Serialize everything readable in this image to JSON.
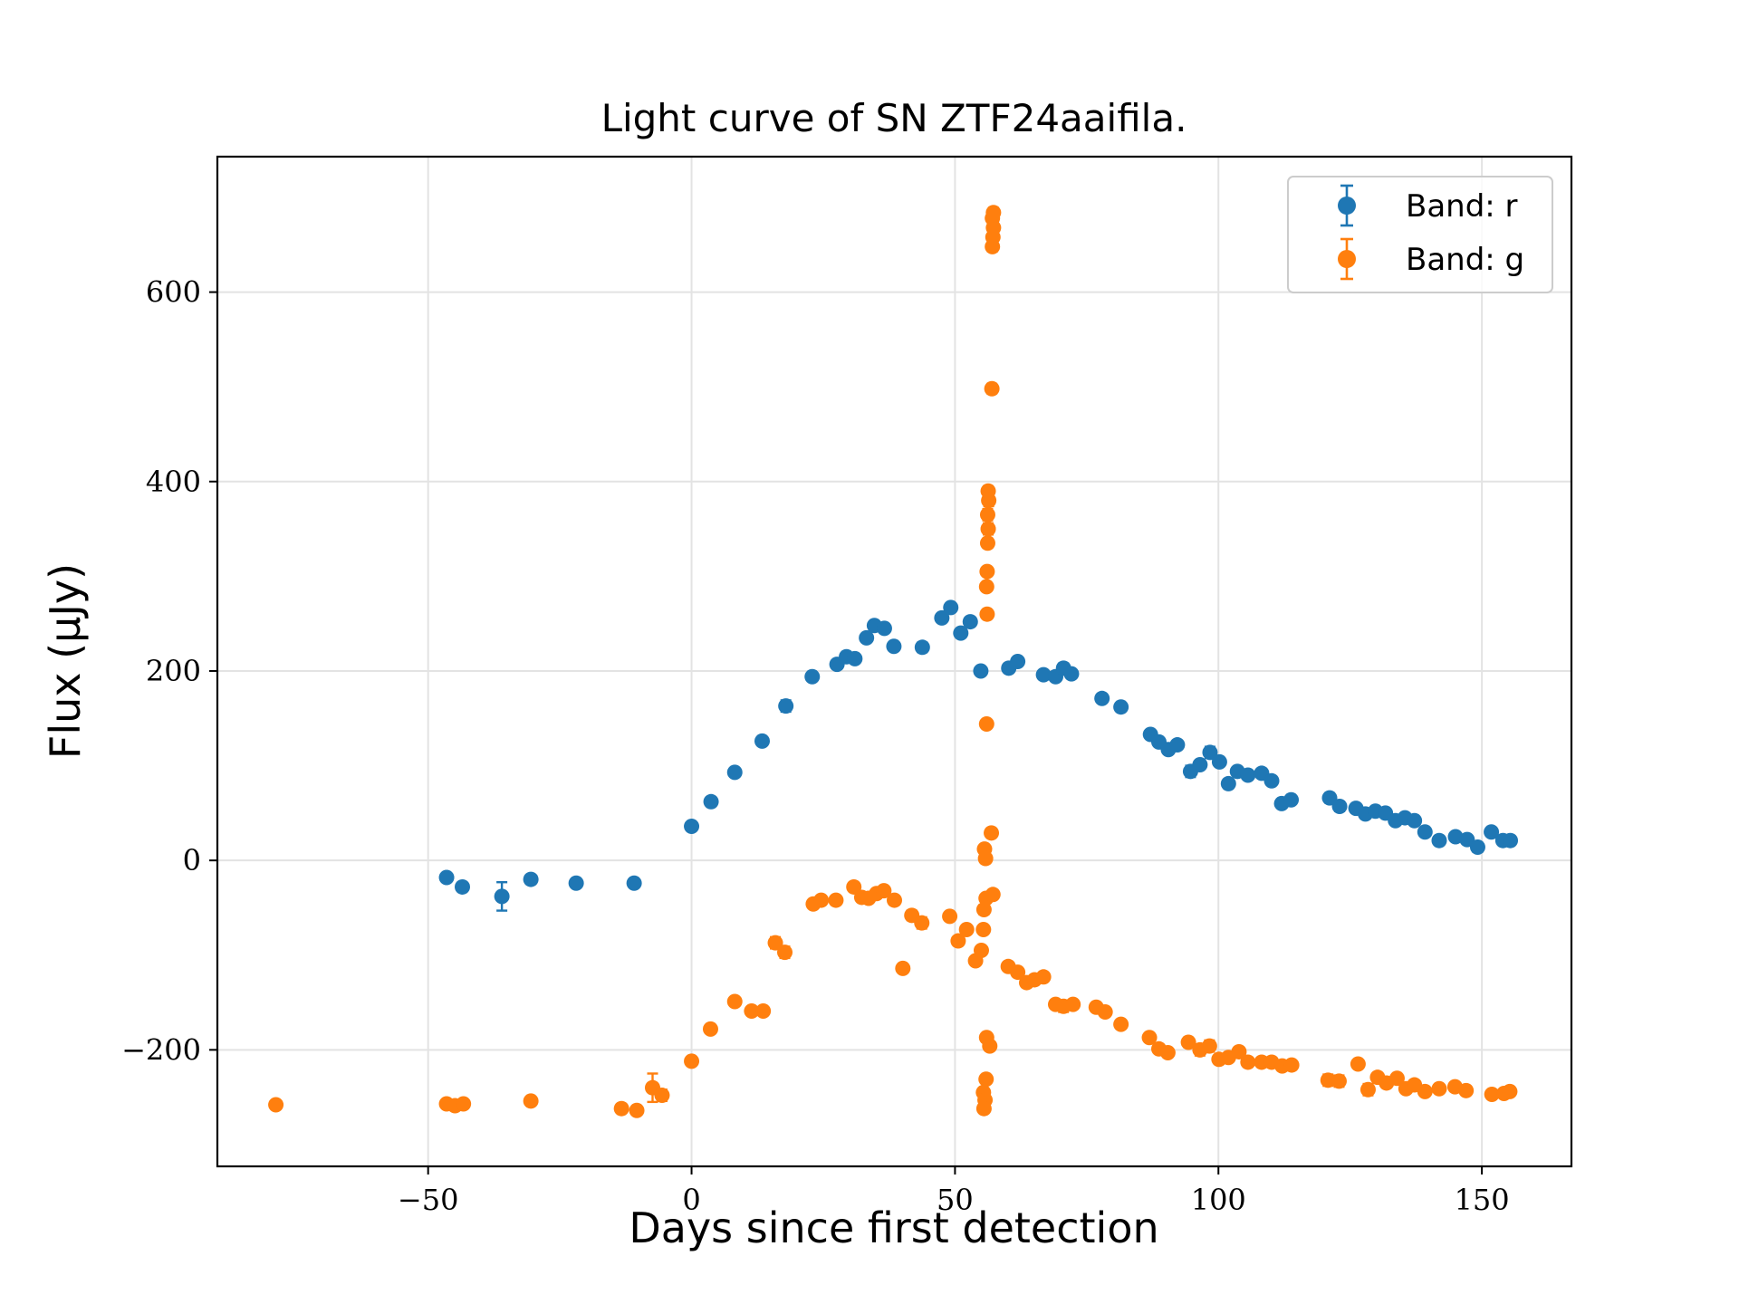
{
  "chart_data": {
    "type": "scatter",
    "title": "Light curve of SN ZTF24aaifila.",
    "xlabel": "Days since first detection",
    "ylabel": "Flux (μJy)",
    "xlim": [
      -90,
      167
    ],
    "ylim": [
      -323,
      743
    ],
    "xticks": [
      -50,
      0,
      50,
      100,
      150
    ],
    "xtick_labels": [
      "−50",
      "0",
      "50",
      "100",
      "150"
    ],
    "yticks": [
      -200,
      0,
      200,
      400,
      600
    ],
    "ytick_labels": [
      "−200",
      "0",
      "200",
      "400",
      "600"
    ],
    "grid": true,
    "legend_position": "top-right",
    "colors": {
      "r": "#1f77b4",
      "g": "#ff7f0e"
    },
    "series": [
      {
        "name": "Band: r",
        "color": "#1f77b4",
        "points": [
          [
            -46.5,
            -18,
            4
          ],
          [
            -43.5,
            -28,
            4
          ],
          [
            -36.0,
            -38,
            15
          ],
          [
            -30.5,
            -20,
            4
          ],
          [
            -21.9,
            -24,
            4
          ],
          [
            -10.9,
            -24,
            4
          ],
          [
            0.0,
            36,
            4
          ],
          [
            3.7,
            62,
            4
          ],
          [
            8.2,
            93,
            4
          ],
          [
            13.4,
            126,
            4
          ],
          [
            17.9,
            163,
            6
          ],
          [
            22.9,
            194,
            4
          ],
          [
            27.6,
            207,
            4
          ],
          [
            29.4,
            215,
            4
          ],
          [
            31.0,
            213,
            4
          ],
          [
            33.2,
            235,
            4
          ],
          [
            34.7,
            248,
            4
          ],
          [
            36.6,
            245,
            4
          ],
          [
            38.4,
            226,
            4
          ],
          [
            43.8,
            225,
            5
          ],
          [
            47.5,
            256,
            4
          ],
          [
            49.2,
            267,
            4
          ],
          [
            51.1,
            240,
            4
          ],
          [
            52.9,
            252,
            4
          ],
          [
            54.9,
            200,
            4
          ],
          [
            60.2,
            203,
            4
          ],
          [
            61.9,
            210,
            4
          ],
          [
            66.8,
            196,
            4
          ],
          [
            69.1,
            194,
            4
          ],
          [
            70.6,
            203,
            5
          ],
          [
            72.1,
            197,
            4
          ],
          [
            77.9,
            171,
            4
          ],
          [
            81.5,
            162,
            4
          ],
          [
            87.1,
            133,
            4
          ],
          [
            88.7,
            125,
            4
          ],
          [
            90.5,
            117,
            4
          ],
          [
            92.2,
            122,
            4
          ],
          [
            94.7,
            94,
            6
          ],
          [
            96.5,
            101,
            4
          ],
          [
            98.4,
            114,
            6
          ],
          [
            100.2,
            104,
            4
          ],
          [
            101.9,
            81,
            4
          ],
          [
            103.6,
            94,
            4
          ],
          [
            105.6,
            90,
            4
          ],
          [
            108.2,
            92,
            4
          ],
          [
            110.1,
            84,
            4
          ],
          [
            112.0,
            60,
            4
          ],
          [
            113.8,
            64,
            4
          ],
          [
            121.1,
            66,
            5
          ],
          [
            123.0,
            57,
            5
          ],
          [
            126.1,
            55,
            4
          ],
          [
            127.9,
            49,
            4
          ],
          [
            129.8,
            52,
            4
          ],
          [
            131.7,
            50,
            4
          ],
          [
            133.6,
            42,
            4
          ],
          [
            135.4,
            45,
            4
          ],
          [
            137.2,
            42,
            4
          ],
          [
            139.2,
            30,
            4
          ],
          [
            141.9,
            21,
            4
          ],
          [
            145.0,
            25,
            4
          ],
          [
            147.2,
            22,
            4
          ],
          [
            149.2,
            14,
            5
          ],
          [
            151.8,
            30,
            4
          ],
          [
            154.0,
            21,
            4
          ],
          [
            155.4,
            21,
            4
          ]
        ]
      },
      {
        "name": "Band: g",
        "color": "#ff7f0e",
        "points": [
          [
            -78.9,
            -258,
            4
          ],
          [
            -46.5,
            -257,
            4
          ],
          [
            -44.9,
            -259,
            4
          ],
          [
            -43.3,
            -257,
            4
          ],
          [
            -30.5,
            -254,
            4
          ],
          [
            -13.3,
            -262,
            4
          ],
          [
            -10.4,
            -264,
            4
          ],
          [
            -7.4,
            -240,
            15
          ],
          [
            -5.6,
            -248,
            6
          ],
          [
            0.0,
            -212,
            4
          ],
          [
            3.6,
            -178,
            4
          ],
          [
            8.2,
            -149,
            4
          ],
          [
            11.4,
            -159,
            4
          ],
          [
            13.6,
            -159,
            4
          ],
          [
            15.9,
            -87,
            6
          ],
          [
            17.7,
            -97,
            6
          ],
          [
            23.1,
            -46,
            4
          ],
          [
            24.6,
            -42,
            4
          ],
          [
            27.4,
            -42,
            4
          ],
          [
            30.8,
            -28,
            4
          ],
          [
            32.3,
            -39,
            4
          ],
          [
            33.6,
            -40,
            4
          ],
          [
            35.1,
            -35,
            4
          ],
          [
            36.5,
            -32,
            4
          ],
          [
            38.5,
            -42,
            4
          ],
          [
            40.1,
            -114,
            4
          ],
          [
            41.8,
            -58,
            5
          ],
          [
            43.7,
            -66,
            6
          ],
          [
            49.0,
            -59,
            4
          ],
          [
            50.6,
            -85,
            4
          ],
          [
            52.2,
            -73,
            4
          ],
          [
            53.9,
            -106,
            4
          ],
          [
            55.0,
            -95,
            4
          ],
          [
            55.5,
            -52,
            5
          ],
          [
            55.9,
            -40,
            4
          ],
          [
            55.4,
            -245,
            4
          ],
          [
            55.7,
            -253,
            4
          ],
          [
            55.5,
            -262,
            4
          ],
          [
            55.9,
            -231,
            4
          ],
          [
            56.0,
            -187,
            4
          ],
          [
            56.6,
            -196,
            4
          ],
          [
            55.4,
            -73,
            4
          ],
          [
            55.6,
            12,
            4
          ],
          [
            55.8,
            2,
            4
          ],
          [
            56.0,
            144,
            4
          ],
          [
            56.1,
            260,
            4
          ],
          [
            56.0,
            289,
            4
          ],
          [
            56.1,
            305,
            4
          ],
          [
            56.2,
            335,
            5
          ],
          [
            56.3,
            350,
            6
          ],
          [
            56.2,
            365,
            6
          ],
          [
            56.4,
            380,
            6
          ],
          [
            56.3,
            390,
            5
          ],
          [
            56.9,
            29,
            4
          ],
          [
            57.2,
            -36,
            4
          ],
          [
            57.0,
            498,
            5
          ],
          [
            57.1,
            648,
            5
          ],
          [
            57.2,
            658,
            5
          ],
          [
            57.3,
            668,
            5
          ],
          [
            57.1,
            678,
            5
          ],
          [
            57.3,
            684,
            5
          ],
          [
            60.1,
            -112,
            4
          ],
          [
            61.9,
            -118,
            4
          ],
          [
            63.6,
            -129,
            4
          ],
          [
            65.1,
            -126,
            4
          ],
          [
            66.8,
            -123,
            4
          ],
          [
            69.1,
            -152,
            4
          ],
          [
            70.6,
            -154,
            6
          ],
          [
            72.4,
            -152,
            4
          ],
          [
            76.8,
            -155,
            4
          ],
          [
            78.5,
            -160,
            4
          ],
          [
            81.5,
            -173,
            4
          ],
          [
            86.9,
            -187,
            4
          ],
          [
            88.7,
            -199,
            4
          ],
          [
            90.4,
            -203,
            4
          ],
          [
            94.3,
            -192,
            5
          ],
          [
            96.5,
            -200,
            6
          ],
          [
            98.3,
            -196,
            6
          ],
          [
            100.1,
            -210,
            4
          ],
          [
            101.9,
            -208,
            4
          ],
          [
            103.9,
            -202,
            4
          ],
          [
            105.6,
            -213,
            4
          ],
          [
            108.2,
            -213,
            4
          ],
          [
            110.1,
            -213,
            4
          ],
          [
            112.1,
            -217,
            4
          ],
          [
            113.9,
            -216,
            4
          ],
          [
            120.8,
            -232,
            6
          ],
          [
            122.9,
            -233,
            6
          ],
          [
            126.5,
            -215,
            4
          ],
          [
            128.4,
            -242,
            6
          ],
          [
            130.2,
            -229,
            4
          ],
          [
            131.9,
            -235,
            4
          ],
          [
            133.9,
            -230,
            4
          ],
          [
            135.6,
            -241,
            4
          ],
          [
            137.2,
            -237,
            4
          ],
          [
            139.2,
            -244,
            4
          ],
          [
            141.9,
            -241,
            4
          ],
          [
            144.9,
            -239,
            4
          ],
          [
            147.0,
            -243,
            4
          ],
          [
            151.9,
            -247,
            4
          ],
          [
            154.2,
            -246,
            4
          ],
          [
            155.3,
            -244,
            4
          ]
        ]
      }
    ]
  }
}
